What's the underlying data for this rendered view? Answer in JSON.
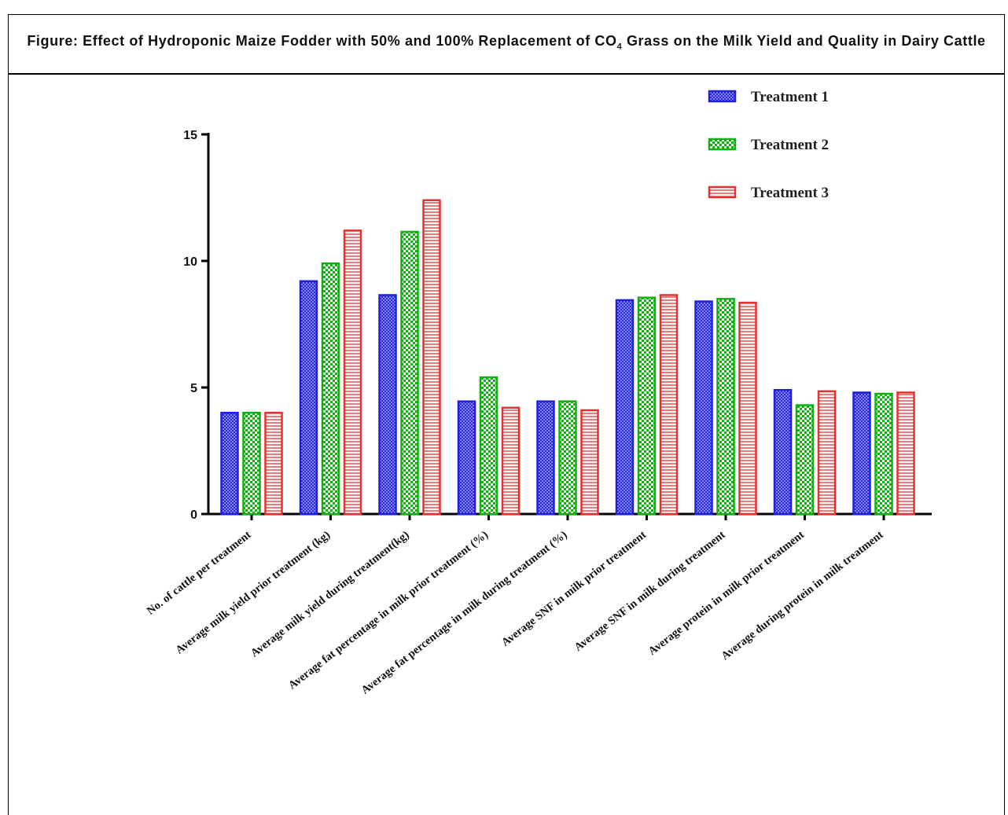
{
  "figure": {
    "caption_pre": "Figure: Effect of Hydroponic Maize Fodder with 50% and 100% Replacement of CO",
    "caption_sub": "4",
    "caption_post": " Grass on the Milk Yield and Quality in Dairy Cattle"
  },
  "chart_data": {
    "type": "bar",
    "title": "",
    "xlabel": "",
    "ylabel": "",
    "ylim": [
      0,
      15
    ],
    "yticks": [
      0,
      5,
      10,
      15
    ],
    "grid": false,
    "legend_position": "top-right",
    "categories": [
      "No. of cattle per treatment",
      "Average milk yield prior treatment (kg)",
      "Average milk yield during treatment(kg)",
      "Average fat percentage in milk prior treatment (%)",
      "Average fat percentage in milk during treatment  (%)",
      "Average SNF in milk prior treatment",
      "Average SNF in milk during treatment",
      "Average protein in milk prior treatment",
      "Average during protein in milk treatment"
    ],
    "series": [
      {
        "name": "Treatment 1",
        "color": "#2020e0",
        "pattern": "crosshatch",
        "values": [
          4.0,
          9.2,
          8.65,
          4.45,
          4.45,
          8.45,
          8.4,
          4.9,
          4.8
        ]
      },
      {
        "name": "Treatment 2",
        "color": "#10b010",
        "pattern": "checker",
        "values": [
          4.0,
          9.9,
          11.15,
          5.4,
          4.45,
          8.55,
          8.5,
          4.3,
          4.75
        ]
      },
      {
        "name": "Treatment 3",
        "color": "#e83030",
        "pattern": "horizontal",
        "values": [
          4.0,
          11.2,
          12.4,
          4.2,
          4.1,
          8.65,
          8.35,
          4.85,
          4.8
        ]
      }
    ]
  }
}
